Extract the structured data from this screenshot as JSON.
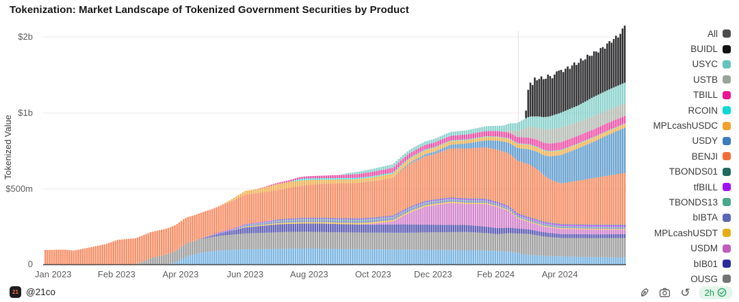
{
  "title": "Tokenization: Market Landscape of Tokenized Government Securities by Product",
  "y_axis": {
    "label": "Tokenized Value",
    "units": "USD",
    "ticks": [
      {
        "label": "$2b",
        "value": 2000
      },
      {
        "label": "$1b",
        "value": 1000
      },
      {
        "label": "$500m",
        "value": 500
      },
      {
        "label": "0",
        "value": 0
      }
    ]
  },
  "x_axis": {
    "ticks": [
      {
        "label": "Jan 2023",
        "t": 0.015
      },
      {
        "label": "Feb 2023",
        "t": 0.124
      },
      {
        "label": "Apr 2023",
        "t": 0.234
      },
      {
        "label": "Jun 2023",
        "t": 0.345
      },
      {
        "label": "Aug 2023",
        "t": 0.455
      },
      {
        "label": "Oct 2023",
        "t": 0.565
      },
      {
        "label": "Dec 2023",
        "t": 0.668
      },
      {
        "label": "Feb 2024",
        "t": 0.776
      },
      {
        "label": "Apr 2024",
        "t": 0.886
      }
    ]
  },
  "legend": {
    "items": [
      {
        "label": "All",
        "color": "#4d4d4d"
      },
      {
        "label": "BUIDL",
        "color": "#111111"
      },
      {
        "label": "USYC",
        "color": "#62c3bf"
      },
      {
        "label": "USTB",
        "color": "#9aa49b"
      },
      {
        "label": "TBILL",
        "color": "#ec1490"
      },
      {
        "label": "RCOIN",
        "color": "#0ad8d2"
      },
      {
        "label": "MPLcashUSDC",
        "color": "#efa22d"
      },
      {
        "label": "USDY",
        "color": "#3a7cbc"
      },
      {
        "label": "BENJI",
        "color": "#f26c39"
      },
      {
        "label": "TBONDS01",
        "color": "#20695f"
      },
      {
        "label": "tfBILL",
        "color": "#a011f2"
      },
      {
        "label": "TBONDS13",
        "color": "#49a88b"
      },
      {
        "label": "bIBTA",
        "color": "#5a67b5"
      },
      {
        "label": "MPLcashUSDT",
        "color": "#e3ae1a"
      },
      {
        "label": "USDM",
        "color": "#c05cbb"
      },
      {
        "label": "bIB01",
        "color": "#2b2b9d"
      },
      {
        "label": "OUSG",
        "color": "#737373"
      }
    ]
  },
  "footer": {
    "logo_text": "21",
    "attribution": "@21co"
  },
  "toolbar": {
    "updated_label": "2h"
  },
  "chart_data": {
    "type": "area",
    "stacked": true,
    "title": "Tokenization: Market Landscape of Tokenized Government Securities by Product",
    "xlabel": "",
    "ylabel": "Tokenized Value",
    "units": "USD millions",
    "x_range": [
      "Jan 2023",
      "Jun 2024"
    ],
    "y_scale_note": "linear 0-500m, then each doubling equally spaced (log2) up to $2b",
    "grid": "horizontal lines at 500m, 1b, 2b; faint vertical line near t=0.815",
    "legend_position": "right",
    "series_note": "bottom-to-top stack; t is fraction of x-axis; values are $ millions; bottom light-blue band has no visible legend entry (legend truncated below OUSG)",
    "series": [
      {
        "name": "(unlabeled light blue)",
        "color": "#63a8dc",
        "points": [
          [
            0,
            0
          ],
          [
            0.21,
            0
          ],
          [
            0.225,
            12
          ],
          [
            0.245,
            55
          ],
          [
            0.27,
            78
          ],
          [
            0.3,
            92
          ],
          [
            0.345,
            100
          ],
          [
            0.45,
            105
          ],
          [
            0.563,
            100
          ],
          [
            0.672,
            95
          ],
          [
            0.76,
            92
          ],
          [
            0.8,
            85
          ],
          [
            0.835,
            62
          ],
          [
            0.87,
            55
          ],
          [
            0.945,
            48
          ],
          [
            1,
            45
          ]
        ]
      },
      {
        "name": "OUSG",
        "color": "#8f8f8f",
        "points": [
          [
            0,
            0
          ],
          [
            0.155,
            0
          ],
          [
            0.167,
            18
          ],
          [
            0.182,
            42
          ],
          [
            0.21,
            66
          ],
          [
            0.236,
            85
          ],
          [
            0.29,
            95
          ],
          [
            0.345,
            105
          ],
          [
            0.42,
            112
          ],
          [
            0.51,
            110
          ],
          [
            0.617,
            112
          ],
          [
            0.672,
            118
          ],
          [
            0.727,
            122
          ],
          [
            0.781,
            112
          ],
          [
            0.82,
            132
          ],
          [
            0.835,
            140
          ],
          [
            0.86,
            128
          ],
          [
            0.89,
            122
          ],
          [
            0.95,
            126
          ],
          [
            1,
            130
          ]
        ]
      },
      {
        "name": "bIB01",
        "color": "#4343a8",
        "points": [
          [
            0,
            0
          ],
          [
            0.26,
            0
          ],
          [
            0.29,
            10
          ],
          [
            0.32,
            26
          ],
          [
            0.345,
            40
          ],
          [
            0.4,
            52
          ],
          [
            0.48,
            56
          ],
          [
            0.563,
            52
          ],
          [
            0.617,
            56
          ],
          [
            0.672,
            50
          ],
          [
            0.727,
            46
          ],
          [
            0.781,
            40
          ],
          [
            0.835,
            30
          ],
          [
            0.89,
            26
          ],
          [
            1,
            25
          ]
        ]
      },
      {
        "name": "USDM",
        "color": "#cc70c5",
        "points": [
          [
            0,
            0
          ],
          [
            0.54,
            0
          ],
          [
            0.563,
            6
          ],
          [
            0.6,
            20
          ],
          [
            0.63,
            80
          ],
          [
            0.655,
            118
          ],
          [
            0.672,
            130
          ],
          [
            0.7,
            145
          ],
          [
            0.727,
            140
          ],
          [
            0.76,
            150
          ],
          [
            0.781,
            140
          ],
          [
            0.8,
            110
          ],
          [
            0.815,
            68
          ],
          [
            0.835,
            48
          ],
          [
            0.86,
            38
          ],
          [
            0.89,
            34
          ],
          [
            1,
            30
          ]
        ]
      },
      {
        "name": "MPLcashUSDT",
        "color": "#e7b72f",
        "points": [
          [
            0,
            0
          ],
          [
            0.32,
            0
          ],
          [
            0.345,
            5
          ],
          [
            0.42,
            9
          ],
          [
            0.563,
            10
          ],
          [
            0.7,
            9
          ],
          [
            0.781,
            7
          ],
          [
            1,
            5
          ]
        ]
      },
      {
        "name": "bIBTA",
        "color": "#6974be",
        "points": [
          [
            0,
            0
          ],
          [
            0.27,
            0
          ],
          [
            0.29,
            4
          ],
          [
            0.345,
            8
          ],
          [
            0.43,
            12
          ],
          [
            0.563,
            13
          ],
          [
            0.672,
            12
          ],
          [
            0.781,
            10
          ],
          [
            0.89,
            8
          ],
          [
            1,
            8
          ]
        ]
      },
      {
        "name": "TBONDS13",
        "color": "#5bb197",
        "points": [
          [
            0,
            0
          ],
          [
            0.32,
            0
          ],
          [
            0.345,
            4
          ],
          [
            0.45,
            8
          ],
          [
            0.563,
            8
          ],
          [
            0.672,
            6
          ],
          [
            0.781,
            5
          ],
          [
            1,
            5
          ]
        ]
      },
      {
        "name": "tfBILL",
        "color": "#a62cf0",
        "points": [
          [
            0,
            0
          ],
          [
            0.26,
            0
          ],
          [
            0.29,
            3
          ],
          [
            0.345,
            5
          ],
          [
            0.5,
            6
          ],
          [
            0.617,
            7
          ],
          [
            0.7,
            8
          ],
          [
            0.8,
            9
          ],
          [
            0.89,
            10
          ],
          [
            1,
            12
          ]
        ]
      },
      {
        "name": "TBONDS01",
        "color": "#2d7e72",
        "points": [
          [
            0,
            0
          ],
          [
            0.38,
            0
          ],
          [
            0.4,
            3
          ],
          [
            0.52,
            4
          ],
          [
            1,
            4
          ]
        ]
      },
      {
        "name": "BENJI",
        "color": "#f5794a",
        "points": [
          [
            0,
            95
          ],
          [
            0.03,
            98
          ],
          [
            0.05,
            92
          ],
          [
            0.08,
            115
          ],
          [
            0.105,
            135
          ],
          [
            0.124,
            162
          ],
          [
            0.15,
            172
          ],
          [
            0.182,
            172
          ],
          [
            0.236,
            172
          ],
          [
            0.29,
            170
          ],
          [
            0.345,
            195
          ],
          [
            0.4,
            195
          ],
          [
            0.454,
            210
          ],
          [
            0.51,
            220
          ],
          [
            0.563,
            225
          ],
          [
            0.6,
            228
          ],
          [
            0.63,
            245
          ],
          [
            0.655,
            252
          ],
          [
            0.672,
            255
          ],
          [
            0.7,
            280
          ],
          [
            0.727,
            285
          ],
          [
            0.75,
            292
          ],
          [
            0.781,
            300
          ],
          [
            0.81,
            306
          ],
          [
            0.835,
            312
          ],
          [
            0.85,
            300
          ],
          [
            0.87,
            268
          ],
          [
            0.89,
            258
          ],
          [
            0.91,
            268
          ],
          [
            0.94,
            285
          ],
          [
            0.97,
            300
          ],
          [
            1,
            315
          ]
        ]
      },
      {
        "name": "USDY",
        "color": "#4a8fc7",
        "points": [
          [
            0,
            0
          ],
          [
            0.6,
            0
          ],
          [
            0.617,
            6
          ],
          [
            0.672,
            16
          ],
          [
            0.7,
            24
          ],
          [
            0.727,
            34
          ],
          [
            0.755,
            46
          ],
          [
            0.781,
            62
          ],
          [
            0.81,
            76
          ],
          [
            0.835,
            92
          ],
          [
            0.86,
            112
          ],
          [
            0.89,
            155
          ],
          [
            0.92,
            185
          ],
          [
            0.945,
            215
          ],
          [
            0.97,
            252
          ],
          [
            1,
            295
          ]
        ]
      },
      {
        "name": "MPLcashUSDC",
        "color": "#f1a73c",
        "points": [
          [
            0,
            0
          ],
          [
            0.3,
            0
          ],
          [
            0.32,
            12
          ],
          [
            0.345,
            26
          ],
          [
            0.4,
            30
          ],
          [
            0.44,
            26
          ],
          [
            0.48,
            20
          ],
          [
            0.52,
            18
          ],
          [
            0.563,
            20
          ],
          [
            0.63,
            24
          ],
          [
            0.672,
            26
          ],
          [
            0.727,
            24
          ],
          [
            0.781,
            26
          ],
          [
            0.835,
            30
          ],
          [
            1,
            30
          ]
        ]
      },
      {
        "name": "RCOIN",
        "color": "#2bdfd8",
        "points": [
          [
            0,
            0
          ],
          [
            0.42,
            0
          ],
          [
            0.44,
            8
          ],
          [
            0.5,
            7
          ],
          [
            0.563,
            6
          ],
          [
            0.672,
            5
          ],
          [
            0.781,
            4
          ],
          [
            1,
            4
          ]
        ]
      },
      {
        "name": "TBILL",
        "color": "#ee3399",
        "points": [
          [
            0,
            0
          ],
          [
            0.36,
            0
          ],
          [
            0.4,
            6
          ],
          [
            0.454,
            11
          ],
          [
            0.51,
            16
          ],
          [
            0.563,
            22
          ],
          [
            0.617,
            27
          ],
          [
            0.672,
            31
          ],
          [
            0.727,
            36
          ],
          [
            0.781,
            41
          ],
          [
            0.835,
            46
          ],
          [
            0.89,
            51
          ],
          [
            0.95,
            58
          ],
          [
            1,
            65
          ]
        ]
      },
      {
        "name": "USTB",
        "color": "#a9b2a8",
        "points": [
          [
            0,
            0
          ],
          [
            0.79,
            0
          ],
          [
            0.8,
            18
          ],
          [
            0.815,
            45
          ],
          [
            0.835,
            85
          ],
          [
            0.86,
            100
          ],
          [
            0.89,
            112
          ],
          [
            0.93,
            108
          ],
          [
            0.96,
            112
          ],
          [
            1,
            120
          ]
        ]
      },
      {
        "name": "USYC",
        "color": "#76c9c4",
        "points": [
          [
            0,
            0
          ],
          [
            0.51,
            0
          ],
          [
            0.52,
            8
          ],
          [
            0.563,
            16
          ],
          [
            0.617,
            22
          ],
          [
            0.672,
            26
          ],
          [
            0.727,
            32
          ],
          [
            0.781,
            42
          ],
          [
            0.81,
            60
          ],
          [
            0.835,
            85
          ],
          [
            0.86,
            100
          ],
          [
            0.89,
            125
          ],
          [
            0.92,
            150
          ],
          [
            0.945,
            185
          ],
          [
            0.97,
            205
          ],
          [
            1,
            225
          ]
        ]
      },
      {
        "name": "BUIDL",
        "color": "#1c1c1e",
        "points": [
          [
            0,
            0
          ],
          [
            0.828,
            0
          ],
          [
            0.832,
            180
          ],
          [
            0.835,
            388
          ],
          [
            0.84,
            300
          ],
          [
            0.845,
            420
          ],
          [
            0.85,
            360
          ],
          [
            0.855,
            440
          ],
          [
            0.862,
            380
          ],
          [
            0.868,
            460
          ],
          [
            0.875,
            395
          ],
          [
            0.882,
            470
          ],
          [
            0.89,
            480
          ],
          [
            0.895,
            430
          ],
          [
            0.9,
            515
          ],
          [
            0.906,
            450
          ],
          [
            0.912,
            540
          ],
          [
            0.918,
            470
          ],
          [
            0.924,
            560
          ],
          [
            0.93,
            495
          ],
          [
            0.936,
            585
          ],
          [
            0.942,
            520
          ],
          [
            0.948,
            610
          ],
          [
            0.954,
            545
          ],
          [
            0.96,
            640
          ],
          [
            0.966,
            580
          ],
          [
            0.972,
            700
          ],
          [
            0.978,
            640
          ],
          [
            0.984,
            760
          ],
          [
            0.99,
            690
          ],
          [
            0.995,
            840
          ],
          [
            1,
            900
          ]
        ]
      }
    ]
  }
}
